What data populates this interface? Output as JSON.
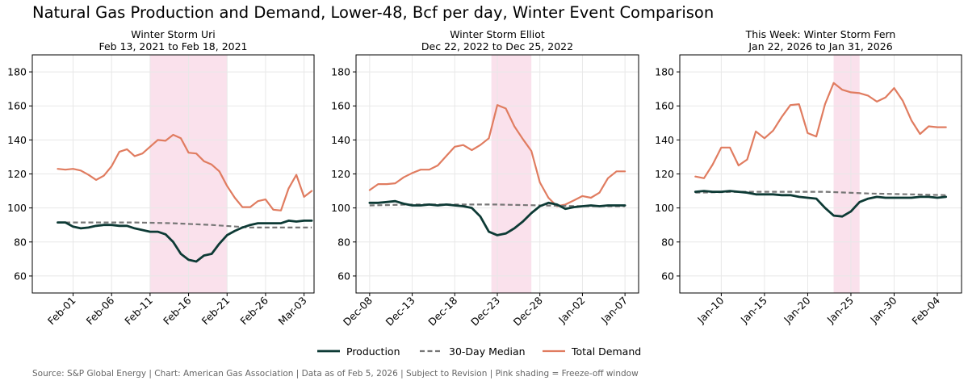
{
  "title": "Natural Gas Production and Demand, Lower-48, Bcf per day, Winter Event Comparison",
  "footer": "Source: S&P Global Energy  |  Chart: American Gas Association  |  Data as of Feb 5, 2026  |  Subject to Revision  |  Pink shading = Freeze-off window",
  "colors": {
    "production": "#0d3a35",
    "median": "#777777",
    "demand": "#e07c60",
    "shading": "#fae1ec",
    "grid": "#e8e8e8"
  },
  "legend": [
    {
      "key": "production",
      "label": "Production"
    },
    {
      "key": "median",
      "label": "30-Day Median"
    },
    {
      "key": "demand",
      "label": "Total Demand"
    }
  ],
  "chart_data": [
    {
      "type": "line",
      "title": "Winter Storm Uri",
      "subtitle": "Feb 13, 2021 to Feb 18, 2021",
      "ylim": [
        50,
        190
      ],
      "yticks": [
        60,
        80,
        100,
        120,
        140,
        160,
        180
      ],
      "xlim": [
        -3.3,
        33.3
      ],
      "xticks": [
        {
          "x": 2,
          "label": "Feb-01"
        },
        {
          "x": 7,
          "label": "Feb-06"
        },
        {
          "x": 12,
          "label": "Feb-11"
        },
        {
          "x": 17,
          "label": "Feb-16"
        },
        {
          "x": 22,
          "label": "Feb-21"
        },
        {
          "x": 27,
          "label": "Feb-26"
        },
        {
          "x": 32,
          "label": "Mar-03"
        }
      ],
      "shade": [
        12,
        22
      ],
      "grid": true,
      "series": [
        {
          "key": "demand",
          "name": "Total Demand",
          "x": [
            0,
            1,
            2,
            3,
            4,
            5,
            6,
            7,
            8,
            9,
            10,
            11,
            12,
            13,
            14,
            15,
            16,
            17,
            18,
            19,
            20,
            21,
            22,
            23,
            24,
            25,
            26,
            27,
            28,
            29,
            30,
            31,
            32,
            33
          ],
          "values": [
            123,
            122.5,
            123,
            122,
            119.5,
            116.5,
            119,
            124.5,
            133,
            134.5,
            130.5,
            132,
            136,
            140,
            139.5,
            143,
            141,
            132.5,
            132,
            127.5,
            125.5,
            121.5,
            113,
            106,
            100.5,
            100.5,
            104,
            105,
            99,
            98.5,
            111.5,
            119.5,
            106.5,
            110
          ]
        },
        {
          "key": "median",
          "name": "30-Day Median",
          "x": [
            0,
            5,
            10,
            15,
            20,
            25,
            30,
            33
          ],
          "values": [
            91.5,
            91.5,
            91.5,
            91,
            90,
            88.5,
            88.5,
            88.5
          ]
        },
        {
          "key": "production",
          "name": "Production",
          "x": [
            0,
            1,
            2,
            3,
            4,
            5,
            6,
            7,
            8,
            9,
            10,
            11,
            12,
            13,
            14,
            15,
            16,
            17,
            18,
            19,
            20,
            21,
            22,
            23,
            24,
            25,
            26,
            27,
            28,
            29,
            30,
            31,
            32,
            33
          ],
          "values": [
            91.5,
            91.5,
            89,
            88,
            88.5,
            89.5,
            90,
            90,
            89.5,
            89.5,
            88,
            87,
            86,
            86,
            84.5,
            80,
            73,
            69.5,
            68.5,
            72,
            73,
            79,
            84,
            86.5,
            88.5,
            90,
            91,
            91,
            91,
            91,
            92.5,
            92,
            92.5,
            92.5
          ]
        }
      ]
    },
    {
      "type": "line",
      "title": "Winter Storm Elliot",
      "subtitle": "Dec 22, 2022 to Dec 25, 2022",
      "ylim": [
        50,
        190
      ],
      "yticks": [
        60,
        80,
        100,
        120,
        140,
        160,
        180
      ],
      "xlim": [
        -1.6,
        31.6
      ],
      "xticks": [
        {
          "x": 0,
          "label": "Dec-08"
        },
        {
          "x": 5,
          "label": "Dec-13"
        },
        {
          "x": 10,
          "label": "Dec-18"
        },
        {
          "x": 15,
          "label": "Dec-23"
        },
        {
          "x": 20,
          "label": "Dec-28"
        },
        {
          "x": 25,
          "label": "Jan-02"
        },
        {
          "x": 30,
          "label": "Jan-07"
        }
      ],
      "shade": [
        14.3,
        19
      ],
      "grid": true,
      "series": [
        {
          "key": "demand",
          "name": "Total Demand",
          "x": [
            0,
            1,
            2,
            3,
            4,
            5,
            6,
            7,
            8,
            9,
            10,
            11,
            12,
            13,
            14,
            15,
            16,
            17,
            18,
            19,
            20,
            21,
            22,
            23,
            24,
            25,
            26,
            27,
            28,
            29,
            30
          ],
          "values": [
            110.5,
            114,
            114,
            114.5,
            118,
            120.5,
            122.5,
            122.5,
            125,
            130.5,
            136,
            137,
            134,
            137,
            141,
            160.5,
            158.5,
            148,
            140.5,
            133.5,
            115,
            106,
            101,
            102,
            104.5,
            107,
            106,
            109,
            117.5,
            121.5,
            121.5
          ]
        },
        {
          "key": "median",
          "name": "30-Day Median",
          "x": [
            0,
            5,
            10,
            15,
            20,
            25,
            30
          ],
          "values": [
            101.5,
            102,
            102,
            102,
            101.5,
            101,
            101
          ]
        },
        {
          "key": "production",
          "name": "Production",
          "x": [
            0,
            1,
            2,
            3,
            4,
            5,
            6,
            7,
            8,
            9,
            10,
            11,
            12,
            13,
            14,
            15,
            16,
            17,
            18,
            19,
            20,
            21,
            22,
            23,
            24,
            25,
            26,
            27,
            28,
            29,
            30
          ],
          "values": [
            103,
            103,
            103.5,
            104,
            102.5,
            101.5,
            101.5,
            102,
            101.5,
            102,
            101.5,
            101,
            100,
            95,
            86,
            84,
            85,
            88,
            92,
            97,
            101,
            103,
            102,
            99.5,
            100.5,
            101,
            101.5,
            101,
            101.5,
            101.5,
            101.5
          ]
        }
      ]
    },
    {
      "type": "line",
      "title": "This Week: Winter Storm Fern",
      "subtitle": "Jan 22, 2026 to Jan 31, 2026",
      "ylim": [
        50,
        190
      ],
      "yticks": [
        60,
        80,
        100,
        120,
        140,
        160,
        180
      ],
      "xlim": [
        -1.8,
        30.8
      ],
      "xticks": [
        {
          "x": 3,
          "label": "Jan-10"
        },
        {
          "x": 8,
          "label": "Jan-15"
        },
        {
          "x": 13,
          "label": "Jan-20"
        },
        {
          "x": 18,
          "label": "Jan-25"
        },
        {
          "x": 23,
          "label": "Jan-30"
        },
        {
          "x": 28,
          "label": "Feb-04"
        }
      ],
      "shade": [
        16,
        19
      ],
      "grid": true,
      "series": [
        {
          "key": "demand",
          "name": "Total Demand",
          "x": [
            0,
            1,
            2,
            3,
            4,
            5,
            6,
            7,
            8,
            9,
            10,
            11,
            12,
            13,
            14,
            15,
            16,
            17,
            18,
            19,
            20,
            21,
            22,
            23,
            24,
            25,
            26,
            27,
            28,
            29
          ],
          "values": [
            118.5,
            117.5,
            125.5,
            135.5,
            135.5,
            125,
            128.5,
            145,
            141,
            145.5,
            153.5,
            160.5,
            161,
            144,
            142,
            161,
            173.5,
            169.5,
            168,
            167.5,
            166,
            162.5,
            165,
            170.5,
            163,
            151.5,
            143.5,
            148,
            147.5,
            147.5
          ]
        },
        {
          "key": "median",
          "name": "30-Day Median",
          "x": [
            0,
            5,
            10,
            15,
            20,
            25,
            29
          ],
          "values": [
            109,
            109.5,
            109.5,
            109.5,
            108.5,
            108,
            107.5
          ]
        },
        {
          "key": "production",
          "name": "Production",
          "x": [
            0,
            1,
            2,
            3,
            4,
            5,
            6,
            7,
            8,
            9,
            10,
            11,
            12,
            13,
            14,
            15,
            16,
            17,
            18,
            19,
            20,
            21,
            22,
            23,
            24,
            25,
            26,
            27,
            28,
            29
          ],
          "values": [
            109.5,
            110,
            109.5,
            109.5,
            110,
            109.5,
            109,
            108,
            108,
            108,
            107.5,
            107.5,
            106.5,
            106,
            105.5,
            100,
            95.5,
            95,
            98,
            103.5,
            105.5,
            106.5,
            106,
            106,
            106,
            106,
            106.5,
            106.5,
            106,
            106.5
          ]
        }
      ]
    }
  ]
}
